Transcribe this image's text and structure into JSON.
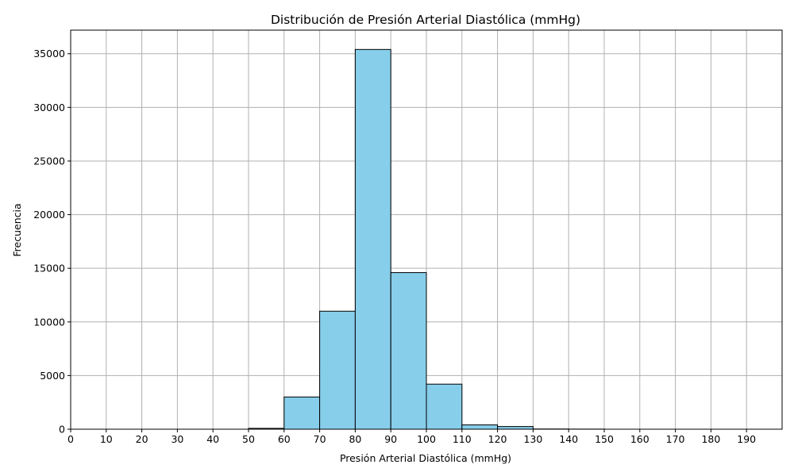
{
  "chart_data": {
    "type": "bar",
    "title": "Distribución de Presión Arterial Diastólica (mmHg)",
    "xlabel": "Presión Arterial Diastólica (mmHg)",
    "ylabel": "Frecuencia",
    "xlim": [
      0,
      200
    ],
    "ylim": [
      0,
      37200
    ],
    "x_ticks": [
      0,
      10,
      20,
      30,
      40,
      50,
      60,
      70,
      80,
      90,
      100,
      110,
      120,
      130,
      140,
      150,
      160,
      170,
      180,
      190
    ],
    "y_ticks": [
      0,
      5000,
      10000,
      15000,
      20000,
      25000,
      30000,
      35000
    ],
    "bin_width": 10,
    "bins": [
      {
        "start": 50,
        "end": 60,
        "value": 80
      },
      {
        "start": 60,
        "end": 70,
        "value": 3000
      },
      {
        "start": 70,
        "end": 80,
        "value": 11000
      },
      {
        "start": 80,
        "end": 90,
        "value": 35400
      },
      {
        "start": 90,
        "end": 100,
        "value": 14600
      },
      {
        "start": 100,
        "end": 110,
        "value": 4200
      },
      {
        "start": 110,
        "end": 120,
        "value": 400
      },
      {
        "start": 120,
        "end": 130,
        "value": 250
      },
      {
        "start": 130,
        "end": 140,
        "value": 20
      },
      {
        "start": 140,
        "end": 150,
        "value": 10
      }
    ],
    "grid": true,
    "colors": {
      "bar_fill": "#87ceeb",
      "bar_edge": "#000000",
      "grid": "#b0b0b0"
    }
  }
}
